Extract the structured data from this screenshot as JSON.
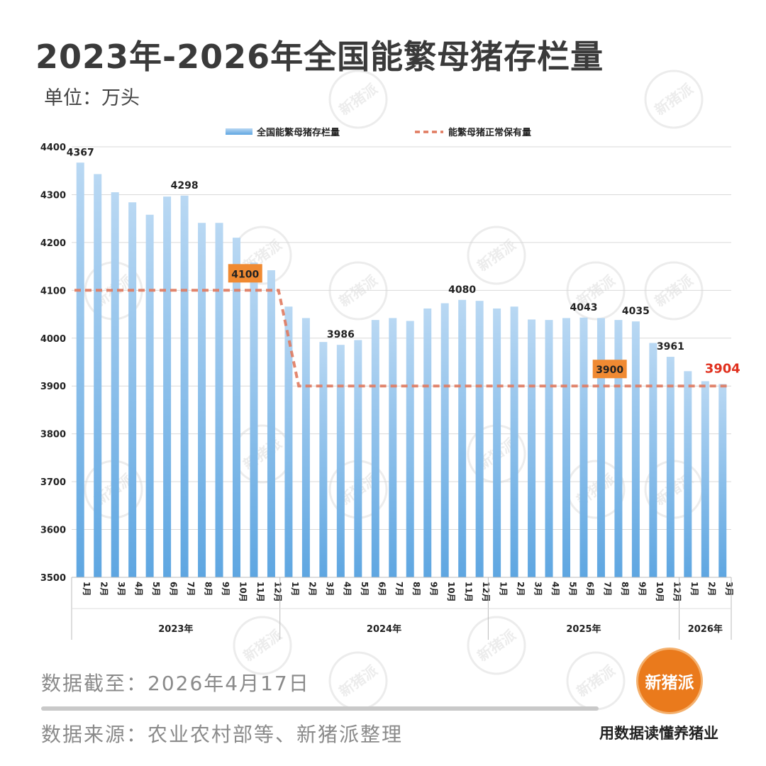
{
  "header": {
    "title": "2023年-2026年全国能繁母猪存栏量",
    "unit": "单位：万头"
  },
  "chart_data": {
    "type": "bar",
    "legend": {
      "bar_label": "全国能繁母猪存栏量",
      "line_label": "能繁母猪正常保有量",
      "placement": "top"
    },
    "ylim": [
      3500,
      4400
    ],
    "yticks": [
      3500,
      3600,
      3700,
      3800,
      3900,
      4000,
      4100,
      4200,
      4300,
      4400
    ],
    "grid": true,
    "groups": [
      {
        "year": "2023年",
        "months": [
          "1月",
          "2月",
          "3月",
          "4月",
          "5月",
          "6月",
          "7月",
          "8月",
          "9月",
          "10月",
          "11月",
          "12月"
        ]
      },
      {
        "year": "2024年",
        "months": [
          "1月",
          "2月",
          "3月",
          "4月",
          "5月",
          "6月",
          "7月",
          "8月",
          "9月",
          "10月",
          "11月",
          "12月"
        ]
      },
      {
        "year": "2025年",
        "months": [
          "1月",
          "2月",
          "3月",
          "4月",
          "5月",
          "6月",
          "7月",
          "8月",
          "9月",
          "10月",
          "12月"
        ]
      },
      {
        "year": "2026年",
        "months": [
          "1月",
          "2月",
          "3月"
        ]
      }
    ],
    "values": [
      4367,
      4343,
      4305,
      4284,
      4258,
      4296,
      4298,
      4241,
      4241,
      4210,
      4158,
      4142,
      4066,
      4042,
      3992,
      3986,
      3996,
      4038,
      4042,
      4036,
      4062,
      4073,
      4080,
      4078,
      4062,
      4066,
      4039,
      4038,
      4042,
      4043,
      4042,
      4038,
      4035,
      3990,
      3961,
      3931,
      3910,
      3904
    ],
    "data_labels": [
      {
        "index": 0,
        "text": "4367",
        "highlight": false
      },
      {
        "index": 6,
        "text": "4298",
        "highlight": false
      },
      {
        "index": 15,
        "text": "3986",
        "highlight": false
      },
      {
        "index": 22,
        "text": "4080",
        "highlight": false
      },
      {
        "index": 29,
        "text": "4043",
        "highlight": false
      },
      {
        "index": 32,
        "text": "4035",
        "highlight": false
      },
      {
        "index": 34,
        "text": "3961",
        "highlight": false
      },
      {
        "index": 37,
        "text": "3904",
        "highlight": true
      }
    ],
    "reference_line": {
      "segments": [
        {
          "from_index": 0,
          "to_index": 11,
          "value": 4100
        },
        {
          "from_index": 13,
          "to_index": 37,
          "value": 3900
        }
      ],
      "callouts": [
        {
          "text": "4100",
          "at_index": 9.5,
          "value": 4100
        },
        {
          "text": "3900",
          "at_index": 30.5,
          "value": 3900
        }
      ]
    },
    "colors": {
      "bar_top": "#b9d8f3",
      "bar_bottom": "#5ea6e1",
      "reference_line": "#e07a5f",
      "callout_bg": "#f08a32",
      "highlight_label": "#e0301e",
      "grid": "#d9d9d9"
    }
  },
  "footer": {
    "date": "数据截至：2026年4月17日",
    "source": "数据来源：农业农村部等、新猪派整理",
    "brand": "新猪派",
    "tagline": "用数据读懂养猪业"
  },
  "watermark": "新猪派"
}
